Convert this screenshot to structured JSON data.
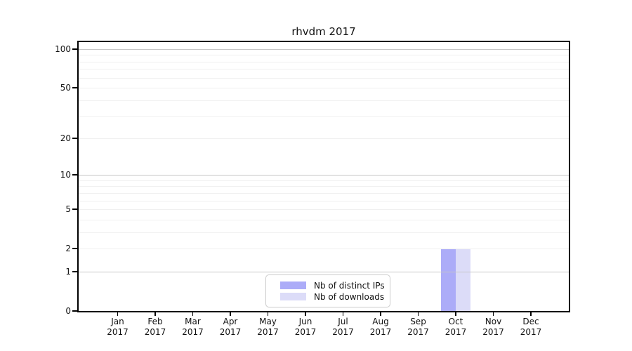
{
  "chart_data": {
    "type": "bar",
    "title": "rhvdm 2017",
    "categories": [
      "Jan",
      "Feb",
      "Mar",
      "Apr",
      "May",
      "Jun",
      "Jul",
      "Aug",
      "Sep",
      "Oct",
      "Nov",
      "Dec"
    ],
    "category_year": "2017",
    "series": [
      {
        "name": "Nb of distinct IPs",
        "color": "#acacf8",
        "values": [
          0,
          0,
          0,
          0,
          0,
          0,
          0,
          0,
          0,
          2,
          0,
          0
        ]
      },
      {
        "name": "Nb of downloads",
        "color": "#dcdcf8",
        "values": [
          0,
          0,
          0,
          0,
          0,
          0,
          0,
          0,
          0,
          2,
          0,
          0
        ]
      }
    ],
    "xlabel": "",
    "ylabel": "",
    "yscale": "log1p",
    "ylim": [
      0,
      113
    ],
    "y_ticks": [
      0,
      1,
      2,
      5,
      10,
      20,
      50,
      100
    ],
    "y_minor_ticks": [
      3,
      4,
      6,
      7,
      8,
      9,
      30,
      40,
      60,
      70,
      80,
      90
    ],
    "grid": "horizontal",
    "legend_position": "lower center inside"
  },
  "colors": {
    "background": "#ffffff",
    "axis": "#000000",
    "text": "#111111",
    "grid_major": "#c6c6c6",
    "grid_minor": "#f0f0f0",
    "legend_border": "#cccccc"
  }
}
